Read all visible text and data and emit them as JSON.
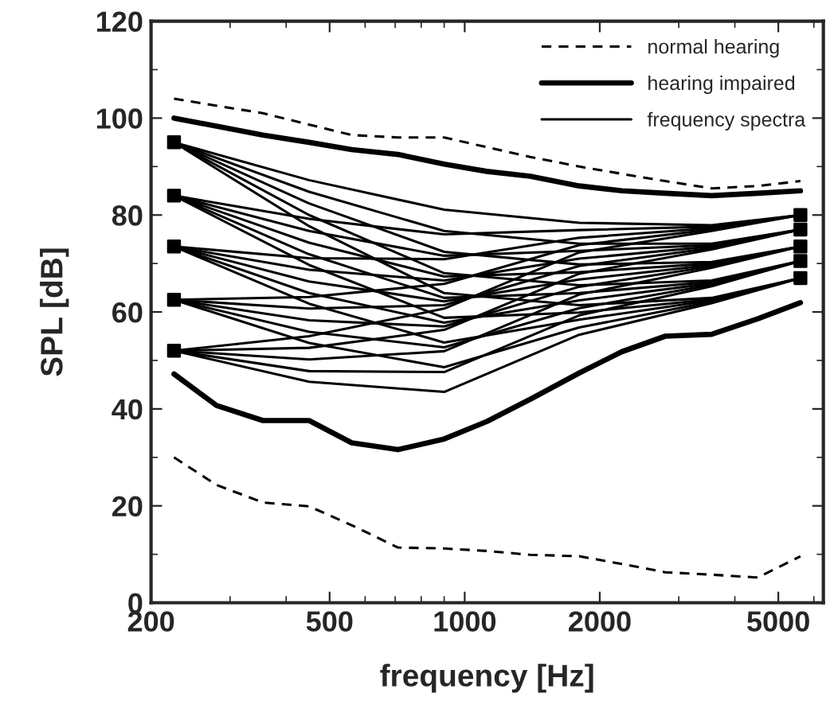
{
  "chart_data": {
    "type": "line",
    "xlabel": "frequency [Hz]",
    "ylabel": "SPL [dB]",
    "log": "x",
    "xlim": [
      200,
      6300
    ],
    "xticks": [
      200,
      500,
      1000,
      2000,
      5000
    ],
    "ylim": [
      0,
      120
    ],
    "yticks": [
      0,
      20,
      40,
      60,
      80,
      100,
      120
    ],
    "grid": false,
    "legend": "top right",
    "series": [
      {
        "name": "normal hearing",
        "line_style": "dashed",
        "color": "#000000",
        "x": [
          225,
          355,
          560,
          710,
          900,
          1120,
          1400,
          1800,
          2240,
          2800,
          3550,
          4500,
          5600
        ],
        "values": [
          104,
          101,
          96.5,
          96,
          96,
          94,
          92,
          90,
          88.5,
          87,
          85.5,
          86,
          87
        ]
      },
      {
        "line_style": "dashed",
        "color": "#000000",
        "x": [
          225,
          280,
          355,
          450,
          560,
          710,
          900,
          1120,
          1400,
          1800,
          2240,
          2800,
          3550,
          4500,
          5600
        ],
        "values": [
          30,
          24.3,
          20.7,
          19.9,
          16,
          11.4,
          11.2,
          10.7,
          9.9,
          9.6,
          8,
          6.3,
          5.8,
          5.2,
          9.6
        ]
      },
      {
        "name": "hearing impaired",
        "line_style": "solid",
        "color": "#000000",
        "x": [
          225,
          355,
          450,
          560,
          710,
          900,
          1120,
          1400,
          1800,
          2240,
          2800,
          3550,
          4500,
          5600
        ],
        "values": [
          100,
          96.5,
          95,
          93.5,
          92.5,
          90.5,
          89,
          88,
          86,
          85,
          84.5,
          84,
          84.5,
          85
        ]
      },
      {
        "line_style": "solid",
        "color": "#000000",
        "x": [
          225,
          280,
          355,
          450,
          560,
          710,
          900,
          1120,
          1400,
          1800,
          2240,
          2800,
          3550,
          4500,
          5600
        ],
        "values": [
          47.2,
          40.7,
          37.6,
          37.6,
          33,
          31.6,
          33.8,
          37.4,
          42,
          47.4,
          51.8,
          55,
          55.4,
          58.6,
          61.9
        ]
      },
      {
        "name": "frequency spectra",
        "line_style": "solid",
        "color": "#000000",
        "x": [
          225,
          450,
          900,
          1800,
          3550,
          5600
        ],
        "values": [
          52,
          45.6,
          43.5,
          55.3,
          61.8,
          67
        ]
      },
      {
        "line_style": "solid",
        "color": "#000000",
        "x": [
          225,
          450,
          900,
          1800,
          3550,
          5600
        ],
        "values": [
          52,
          47.8,
          47.6,
          59.3,
          65.3,
          70.5
        ]
      },
      {
        "line_style": "solid",
        "color": "#000000",
        "x": [
          225,
          450,
          900,
          1800,
          3550,
          5600
        ],
        "values": [
          52,
          50.2,
          51.9,
          63.6,
          69.1,
          73.5
        ]
      },
      {
        "line_style": "solid",
        "color": "#000000",
        "x": [
          225,
          450,
          900,
          1800,
          3550,
          5600
        ],
        "values": [
          52,
          52.6,
          56.3,
          67.9,
          72.9,
          77
        ]
      },
      {
        "line_style": "solid",
        "color": "#000000",
        "x": [
          225,
          450,
          900,
          1800,
          3550,
          5600
        ],
        "values": [
          52,
          55.0,
          60.7,
          72.3,
          76.7,
          80
        ]
      },
      {
        "line_style": "solid",
        "color": "#000000",
        "x": [
          225,
          450,
          900,
          1800,
          3550,
          5600
        ],
        "values": [
          62.5,
          53.6,
          48.6,
          56.8,
          62.1,
          67
        ]
      },
      {
        "line_style": "solid",
        "color": "#000000",
        "x": [
          225,
          450,
          900,
          1800,
          3550,
          5600
        ],
        "values": [
          62.5,
          55.9,
          52.7,
          60.8,
          65.6,
          70.5
        ]
      },
      {
        "line_style": "solid",
        "color": "#000000",
        "x": [
          225,
          450,
          900,
          1800,
          3550,
          5600
        ],
        "values": [
          62.5,
          58.3,
          57.0,
          65.2,
          69.4,
          73.5
        ]
      },
      {
        "line_style": "solid",
        "color": "#000000",
        "x": [
          225,
          450,
          900,
          1800,
          3550,
          5600
        ],
        "values": [
          62.5,
          60.7,
          61.4,
          69.5,
          73.2,
          77
        ]
      },
      {
        "line_style": "solid",
        "color": "#000000",
        "x": [
          225,
          450,
          900,
          1800,
          3550,
          5600
        ],
        "values": [
          62.5,
          63.1,
          65.8,
          73.8,
          77.0,
          80
        ]
      },
      {
        "line_style": "solid",
        "color": "#000000",
        "x": [
          225,
          450,
          900,
          1800,
          3550,
          5600
        ],
        "values": [
          73.5,
          61.7,
          53.7,
          58.4,
          62.4,
          67
        ]
      },
      {
        "line_style": "solid",
        "color": "#000000",
        "x": [
          225,
          450,
          900,
          1800,
          3550,
          5600
        ],
        "values": [
          73.5,
          63.9,
          57.8,
          62.4,
          65.9,
          70.5
        ]
      },
      {
        "line_style": "solid",
        "color": "#000000",
        "x": [
          225,
          450,
          900,
          1800,
          3550,
          5600
        ],
        "values": [
          73.5,
          66.3,
          62.2,
          66.7,
          69.7,
          73.5
        ]
      },
      {
        "line_style": "solid",
        "color": "#000000",
        "x": [
          225,
          450,
          900,
          1800,
          3550,
          5600
        ],
        "values": [
          73.5,
          68.7,
          66.5,
          71.0,
          73.5,
          77
        ]
      },
      {
        "line_style": "solid",
        "color": "#000000",
        "x": [
          225,
          450,
          900,
          1800,
          3550,
          5600
        ],
        "values": [
          73.5,
          71.1,
          70.9,
          75.3,
          77.3,
          80
        ]
      },
      {
        "line_style": "solid",
        "color": "#000000",
        "x": [
          225,
          450,
          900,
          1800,
          3550,
          5600
        ],
        "values": [
          84,
          69.7,
          58.8,
          59.9,
          62.6,
          67
        ]
      },
      {
        "line_style": "solid",
        "color": "#000000",
        "x": [
          225,
          450,
          900,
          1800,
          3550,
          5600
        ],
        "values": [
          84,
          71.9,
          62.9,
          63.9,
          66.2,
          70.5
        ]
      },
      {
        "line_style": "solid",
        "color": "#000000",
        "x": [
          225,
          450,
          900,
          1800,
          3550,
          5600
        ],
        "values": [
          84,
          74.3,
          67.3,
          68.2,
          70.0,
          73.5
        ]
      },
      {
        "line_style": "solid",
        "color": "#000000",
        "x": [
          225,
          450,
          900,
          1800,
          3550,
          5600
        ],
        "values": [
          84,
          76.7,
          71.6,
          72.6,
          73.8,
          77
        ]
      },
      {
        "line_style": "solid",
        "color": "#000000",
        "x": [
          225,
          450,
          900,
          1800,
          3550,
          5600
        ],
        "values": [
          84,
          79.2,
          76.0,
          76.9,
          77.6,
          80
        ]
      },
      {
        "line_style": "solid",
        "color": "#000000",
        "x": [
          225,
          450,
          900,
          1800,
          3550,
          5600
        ],
        "values": [
          95,
          77.7,
          63.9,
          61.4,
          62.9,
          67
        ]
      },
      {
        "line_style": "solid",
        "color": "#000000",
        "x": [
          225,
          450,
          900,
          1800,
          3550,
          5600
        ],
        "values": [
          95,
          80.0,
          68.0,
          65.5,
          66.5,
          70.5
        ]
      },
      {
        "line_style": "solid",
        "color": "#000000",
        "x": [
          225,
          450,
          900,
          1800,
          3550,
          5600
        ],
        "values": [
          95,
          82.4,
          72.4,
          69.8,
          70.3,
          73.5
        ]
      },
      {
        "line_style": "solid",
        "color": "#000000",
        "x": [
          225,
          450,
          900,
          1800,
          3550,
          5600
        ],
        "values": [
          95,
          84.8,
          76.7,
          74.1,
          74.1,
          77
        ]
      },
      {
        "line_style": "solid",
        "color": "#000000",
        "x": [
          225,
          450,
          900,
          1800,
          3550,
          5600
        ],
        "values": [
          95,
          87.2,
          81.1,
          78.4,
          77.9,
          80
        ]
      },
      {
        "type": "scatter",
        "marker": "square",
        "color": "#000000",
        "x": [
          225,
          225,
          225,
          225,
          225
        ],
        "values": [
          52,
          62.5,
          73.5,
          84,
          95
        ]
      },
      {
        "type": "scatter",
        "marker": "square",
        "color": "#000000",
        "x": [
          5600,
          5600,
          5600,
          5600,
          5600
        ],
        "values": [
          67,
          70.5,
          73.5,
          77,
          80
        ]
      }
    ]
  }
}
